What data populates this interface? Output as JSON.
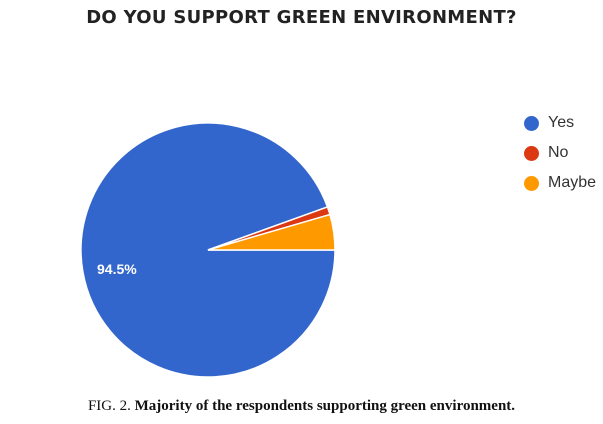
{
  "chart_data": {
    "type": "pie",
    "title": "DO YOU SUPPORT GREEN ENVIRONMENT?",
    "slices": [
      {
        "label": "Yes",
        "value": 94.5,
        "color": "#3366cc",
        "data_label": "94.5%"
      },
      {
        "label": "No",
        "value": 1.0,
        "color": "#dc3912",
        "data_label": ""
      },
      {
        "label": "Maybe",
        "value": 4.5,
        "color": "#ff9900",
        "data_label": ""
      }
    ],
    "legend_position": "right"
  },
  "caption": {
    "label": "FIG. 2.",
    "text": "Majority of the respondents supporting green environment."
  }
}
